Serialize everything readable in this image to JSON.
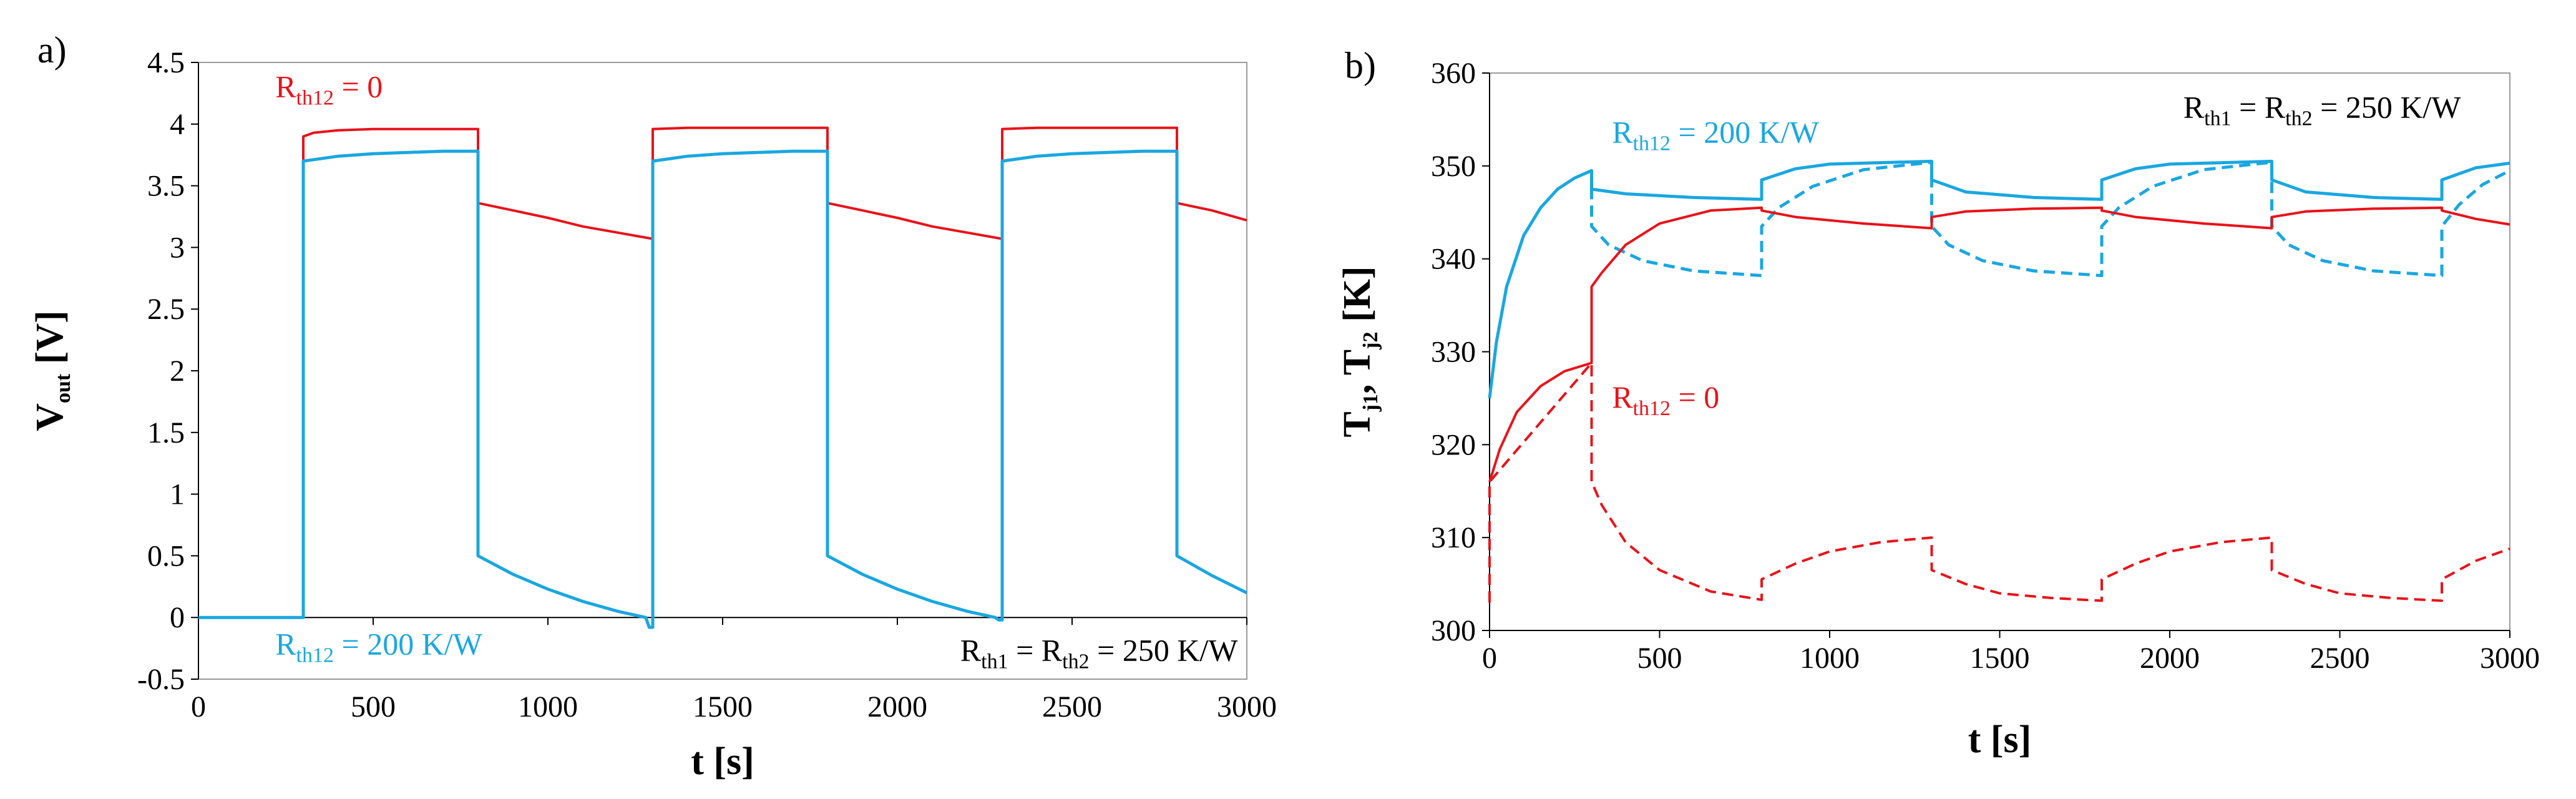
{
  "colors": {
    "red": "#e8131a",
    "blue": "#1aa7e0",
    "axis": "#000000",
    "frame": "#9a9a9a"
  },
  "chart_data": [
    {
      "type": "line",
      "panel_label": "a)",
      "xlabel": "t [s]",
      "ylabel_main": "V",
      "ylabel_sub": "out",
      "ylabel_unit": " [V]",
      "xlim": [
        0,
        3000
      ],
      "ylim": [
        -0.5,
        4.5
      ],
      "xticks": [
        0,
        500,
        1000,
        1500,
        2000,
        2500,
        3000
      ],
      "xtick_labels": [
        "0",
        "500",
        "1000",
        "1500",
        "2000",
        "2500",
        "3000"
      ],
      "yticks": [
        -0.5,
        0,
        0.5,
        1,
        1.5,
        2,
        2.5,
        3,
        3.5,
        4,
        4.5
      ],
      "ytick_labels": [
        "-0.5",
        "0",
        "0.5",
        "1",
        "1.5",
        "2",
        "2.5",
        "3",
        "3.5",
        "4",
        "4.5"
      ],
      "series": [
        {
          "name": "Rth12 = 0",
          "color": "red",
          "dashed": false,
          "points": [
            [
              0,
              0
            ],
            [
              300,
              0
            ],
            [
              300,
              3.9
            ],
            [
              330,
              3.93
            ],
            [
              400,
              3.95
            ],
            [
              500,
              3.96
            ],
            [
              600,
              3.96
            ],
            [
              700,
              3.96
            ],
            [
              800,
              3.96
            ],
            [
              800,
              3.36
            ],
            [
              900,
              3.3
            ],
            [
              1000,
              3.24
            ],
            [
              1100,
              3.17
            ],
            [
              1200,
              3.12
            ],
            [
              1300,
              3.07
            ],
            [
              1300,
              3.96
            ],
            [
              1400,
              3.97
            ],
            [
              1600,
              3.97
            ],
            [
              1800,
              3.97
            ],
            [
              1800,
              3.36
            ],
            [
              1900,
              3.3
            ],
            [
              2000,
              3.24
            ],
            [
              2100,
              3.17
            ],
            [
              2200,
              3.12
            ],
            [
              2300,
              3.07
            ],
            [
              2300,
              3.96
            ],
            [
              2400,
              3.97
            ],
            [
              2600,
              3.97
            ],
            [
              2800,
              3.97
            ],
            [
              2800,
              3.36
            ],
            [
              2900,
              3.3
            ],
            [
              3000,
              3.22
            ]
          ]
        },
        {
          "name": "Rth12 = 200 K/W",
          "color": "blue",
          "dashed": false,
          "points": [
            [
              0,
              0
            ],
            [
              300,
              0
            ],
            [
              300,
              3.7
            ],
            [
              400,
              3.74
            ],
            [
              500,
              3.76
            ],
            [
              600,
              3.77
            ],
            [
              700,
              3.78
            ],
            [
              800,
              3.78
            ],
            [
              800,
              0.5
            ],
            [
              900,
              0.35
            ],
            [
              1000,
              0.23
            ],
            [
              1100,
              0.13
            ],
            [
              1200,
              0.05
            ],
            [
              1280,
              0.0
            ],
            [
              1290,
              -0.08
            ],
            [
              1300,
              -0.08
            ],
            [
              1300,
              3.7
            ],
            [
              1400,
              3.74
            ],
            [
              1500,
              3.76
            ],
            [
              1600,
              3.77
            ],
            [
              1700,
              3.78
            ],
            [
              1800,
              3.78
            ],
            [
              1800,
              0.5
            ],
            [
              1900,
              0.35
            ],
            [
              2000,
              0.23
            ],
            [
              2100,
              0.13
            ],
            [
              2200,
              0.05
            ],
            [
              2280,
              0.0
            ],
            [
              2290,
              -0.02
            ],
            [
              2300,
              -0.02
            ],
            [
              2300,
              3.7
            ],
            [
              2400,
              3.74
            ],
            [
              2500,
              3.76
            ],
            [
              2600,
              3.77
            ],
            [
              2700,
              3.78
            ],
            [
              2800,
              3.78
            ],
            [
              2800,
              0.5
            ],
            [
              2900,
              0.34
            ],
            [
              3000,
              0.2
            ]
          ]
        }
      ],
      "annotations": [
        {
          "main": "R",
          "sub": "th12",
          "rest": " = 0",
          "color": "red",
          "at": [
            220,
            4.22
          ]
        },
        {
          "main": "R",
          "sub": "th12",
          "rest": " = 200 K/W",
          "color": "blue",
          "at": [
            220,
            -0.3
          ]
        },
        {
          "main": "R",
          "sub": "th1",
          "rest": " = R",
          "sub2": "th2",
          "rest2": " = 250 K/W",
          "color": "axis",
          "at": [
            2180,
            -0.35
          ]
        }
      ]
    },
    {
      "type": "line",
      "panel_label": "b)",
      "xlabel": "t [s]",
      "ylabel_main": "T",
      "ylabel_sub": "j1",
      "ylabel_mid": ", T",
      "ylabel_sub2": "j2",
      "ylabel_unit": " [K]",
      "xlim": [
        0,
        3000
      ],
      "ylim": [
        300,
        360
      ],
      "xticks": [
        0,
        500,
        1000,
        1500,
        2000,
        2500,
        3000
      ],
      "xtick_labels": [
        "0",
        "500",
        "1000",
        "1500",
        "2000",
        "2500",
        "3000"
      ],
      "yticks": [
        300,
        310,
        320,
        330,
        340,
        350,
        360
      ],
      "ytick_labels": [
        "300",
        "310",
        "320",
        "330",
        "340",
        "350",
        "360"
      ],
      "series": [
        {
          "name": "Tj1 Rth12 = 200 K/W",
          "color": "blue",
          "dashed": false,
          "points": [
            [
              0,
              325
            ],
            [
              20,
              331
            ],
            [
              50,
              337
            ],
            [
              100,
              342.5
            ],
            [
              150,
              345.5
            ],
            [
              200,
              347.5
            ],
            [
              250,
              348.7
            ],
            [
              300,
              349.5
            ],
            [
              300,
              347.5
            ],
            [
              400,
              347
            ],
            [
              600,
              346.6
            ],
            [
              800,
              346.4
            ],
            [
              800,
              348.5
            ],
            [
              900,
              349.7
            ],
            [
              1000,
              350.2
            ],
            [
              1300,
              350.5
            ],
            [
              1300,
              348.5
            ],
            [
              1400,
              347.2
            ],
            [
              1600,
              346.6
            ],
            [
              1800,
              346.4
            ],
            [
              1800,
              348.5
            ],
            [
              1900,
              349.7
            ],
            [
              2000,
              350.2
            ],
            [
              2300,
              350.5
            ],
            [
              2300,
              348.5
            ],
            [
              2400,
              347.2
            ],
            [
              2600,
              346.6
            ],
            [
              2800,
              346.4
            ],
            [
              2800,
              348.5
            ],
            [
              2900,
              349.8
            ],
            [
              3000,
              350.3
            ]
          ]
        },
        {
          "name": "Tj2 Rth12 = 200 K/W",
          "color": "blue",
          "dashed": true,
          "points": [
            [
              300,
              349.5
            ],
            [
              300,
              343.5
            ],
            [
              350,
              341.5
            ],
            [
              450,
              339.8
            ],
            [
              600,
              338.7
            ],
            [
              800,
              338.2
            ],
            [
              800,
              343.5
            ],
            [
              850,
              345.5
            ],
            [
              950,
              347.8
            ],
            [
              1100,
              349.6
            ],
            [
              1300,
              350.4
            ],
            [
              1300,
              343.5
            ],
            [
              1350,
              341.5
            ],
            [
              1450,
              339.8
            ],
            [
              1600,
              338.7
            ],
            [
              1800,
              338.2
            ],
            [
              1800,
              343.5
            ],
            [
              1850,
              345.5
            ],
            [
              1950,
              347.8
            ],
            [
              2100,
              349.6
            ],
            [
              2300,
              350.4
            ],
            [
              2300,
              343.5
            ],
            [
              2350,
              341.5
            ],
            [
              2450,
              339.8
            ],
            [
              2600,
              338.7
            ],
            [
              2800,
              338.2
            ],
            [
              2800,
              343.5
            ],
            [
              2850,
              345.8
            ],
            [
              2920,
              348
            ],
            [
              3000,
              349.5
            ]
          ]
        },
        {
          "name": "Tj1 Rth12 = 0",
          "color": "red",
          "dashed": false,
          "points": [
            [
              0,
              316
            ],
            [
              30,
              319.5
            ],
            [
              80,
              323.5
            ],
            [
              150,
              326.3
            ],
            [
              220,
              327.9
            ],
            [
              300,
              328.8
            ],
            [
              300,
              337
            ],
            [
              330,
              338.5
            ],
            [
              400,
              341.5
            ],
            [
              500,
              343.8
            ],
            [
              650,
              345.2
            ],
            [
              800,
              345.5
            ],
            [
              800,
              345.2
            ],
            [
              900,
              344.5
            ],
            [
              1100,
              343.8
            ],
            [
              1300,
              343.3
            ],
            [
              1300,
              344.5
            ],
            [
              1400,
              345.1
            ],
            [
              1600,
              345.4
            ],
            [
              1800,
              345.5
            ],
            [
              1800,
              345.2
            ],
            [
              1900,
              344.5
            ],
            [
              2100,
              343.8
            ],
            [
              2300,
              343.3
            ],
            [
              2300,
              344.5
            ],
            [
              2400,
              345.1
            ],
            [
              2600,
              345.4
            ],
            [
              2800,
              345.5
            ],
            [
              2800,
              345.2
            ],
            [
              2900,
              344.3
            ],
            [
              3000,
              343.7
            ]
          ]
        },
        {
          "name": "Tj2 Rth12 = 0",
          "color": "red",
          "dashed": true,
          "points": [
            [
              0,
              303
            ],
            [
              0,
              316
            ],
            [
              300,
              328.8
            ],
            [
              300,
              316
            ],
            [
              330,
              313.5
            ],
            [
              400,
              309.5
            ],
            [
              500,
              306.5
            ],
            [
              650,
              304.2
            ],
            [
              800,
              303.3
            ],
            [
              800,
              305.5
            ],
            [
              900,
              307.2
            ],
            [
              1000,
              308.5
            ],
            [
              1150,
              309.5
            ],
            [
              1300,
              310
            ],
            [
              1300,
              306.5
            ],
            [
              1400,
              305
            ],
            [
              1500,
              304
            ],
            [
              1650,
              303.5
            ],
            [
              1800,
              303.2
            ],
            [
              1800,
              305.5
            ],
            [
              1900,
              307.2
            ],
            [
              2000,
              308.5
            ],
            [
              2150,
              309.5
            ],
            [
              2300,
              310
            ],
            [
              2300,
              306.5
            ],
            [
              2400,
              305
            ],
            [
              2500,
              304
            ],
            [
              2650,
              303.5
            ],
            [
              2800,
              303.2
            ],
            [
              2800,
              305.5
            ],
            [
              2900,
              307.5
            ],
            [
              3000,
              308.8
            ]
          ]
        }
      ],
      "annotations": [
        {
          "main": "R",
          "sub": "th12",
          "rest": " = 200 K/W",
          "color": "blue",
          "at": [
            360,
            352.5
          ]
        },
        {
          "main": "R",
          "sub": "th12",
          "rest": " = 0",
          "color": "red",
          "at": [
            360,
            324
          ]
        },
        {
          "main": "R",
          "sub": "th1",
          "rest": " = R",
          "sub2": "th2",
          "rest2": " = 250 K/W",
          "color": "axis",
          "at": [
            2040,
            355.2
          ]
        }
      ]
    }
  ]
}
